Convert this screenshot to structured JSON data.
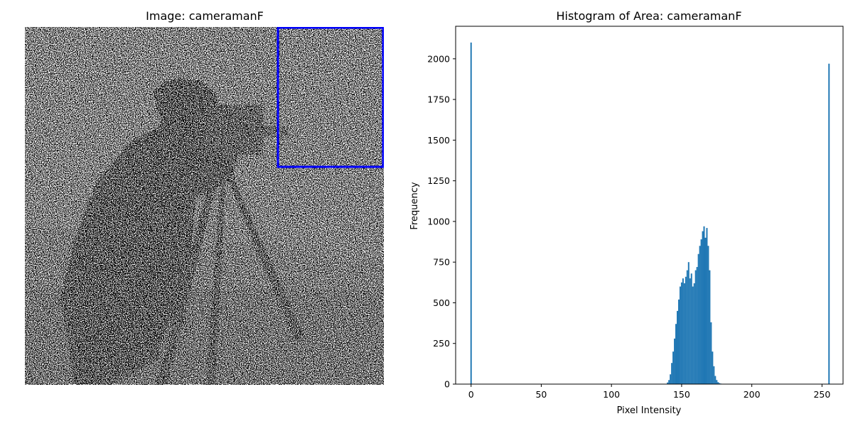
{
  "image_panel": {
    "title": "Image: cameramanF",
    "selection_color": "#0000ff"
  },
  "histogram_panel": {
    "title": "Histogram of Area: cameramanF"
  },
  "chart_data": {
    "type": "bar",
    "title": "Histogram of Area: cameramanF",
    "xlabel": "Pixel Intensity",
    "ylabel": "Frequency",
    "xlim": [
      -11,
      265
    ],
    "ylim": [
      0,
      2200
    ],
    "xticks": [
      0,
      50,
      100,
      150,
      200,
      250
    ],
    "yticks": [
      0,
      250,
      500,
      750,
      1000,
      1250,
      1500,
      1750,
      2000
    ],
    "bar_color": "#1f77b4",
    "grid": false,
    "x": [
      0,
      140,
      141,
      142,
      143,
      144,
      145,
      146,
      147,
      148,
      149,
      150,
      151,
      152,
      153,
      154,
      155,
      156,
      157,
      158,
      159,
      160,
      161,
      162,
      163,
      164,
      165,
      166,
      167,
      168,
      169,
      170,
      171,
      172,
      173,
      174,
      175,
      176,
      177,
      178,
      179,
      180,
      187,
      255
    ],
    "values": [
      2100,
      10,
      25,
      60,
      130,
      200,
      280,
      370,
      450,
      520,
      600,
      625,
      650,
      620,
      660,
      700,
      750,
      650,
      680,
      600,
      620,
      700,
      720,
      800,
      850,
      890,
      940,
      970,
      900,
      960,
      850,
      700,
      380,
      200,
      110,
      50,
      25,
      12,
      6,
      3,
      2,
      2,
      2,
      1970
    ]
  }
}
